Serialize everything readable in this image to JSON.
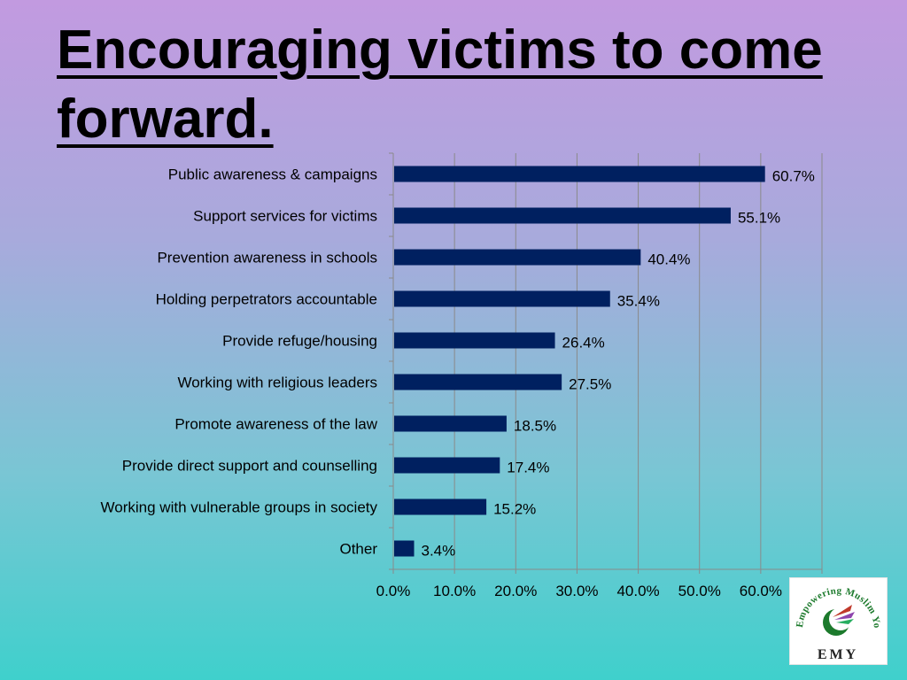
{
  "slide": {
    "title": "Encouraging victims to come forward."
  },
  "chart_data": {
    "type": "bar",
    "orientation": "horizontal",
    "categories": [
      "Public awareness & campaigns",
      "Support services for victims",
      "Prevention awareness in schools",
      "Holding perpetrators accountable",
      "Provide refuge/housing",
      "Working with religious leaders",
      "Promote awareness of the law",
      "Provide direct support and counselling",
      "Working with vulnerable groups in society",
      "Other"
    ],
    "values": [
      60.7,
      55.1,
      40.4,
      35.4,
      26.4,
      27.5,
      18.5,
      17.4,
      15.2,
      3.4
    ],
    "value_labels": [
      "60.7%",
      "55.1%",
      "40.4%",
      "35.4%",
      "26.4%",
      "27.5%",
      "18.5%",
      "17.4%",
      "15.2%",
      "3.4%"
    ],
    "x_ticks": [
      "0.0%",
      "10.0%",
      "20.0%",
      "30.0%",
      "40.0%",
      "50.0%",
      "60.0%"
    ],
    "xlim": [
      0,
      70
    ],
    "grid": true,
    "bar_color": "#002060"
  },
  "logo": {
    "arc_text": "Empowering Muslim Youth",
    "acronym": "EMY"
  }
}
